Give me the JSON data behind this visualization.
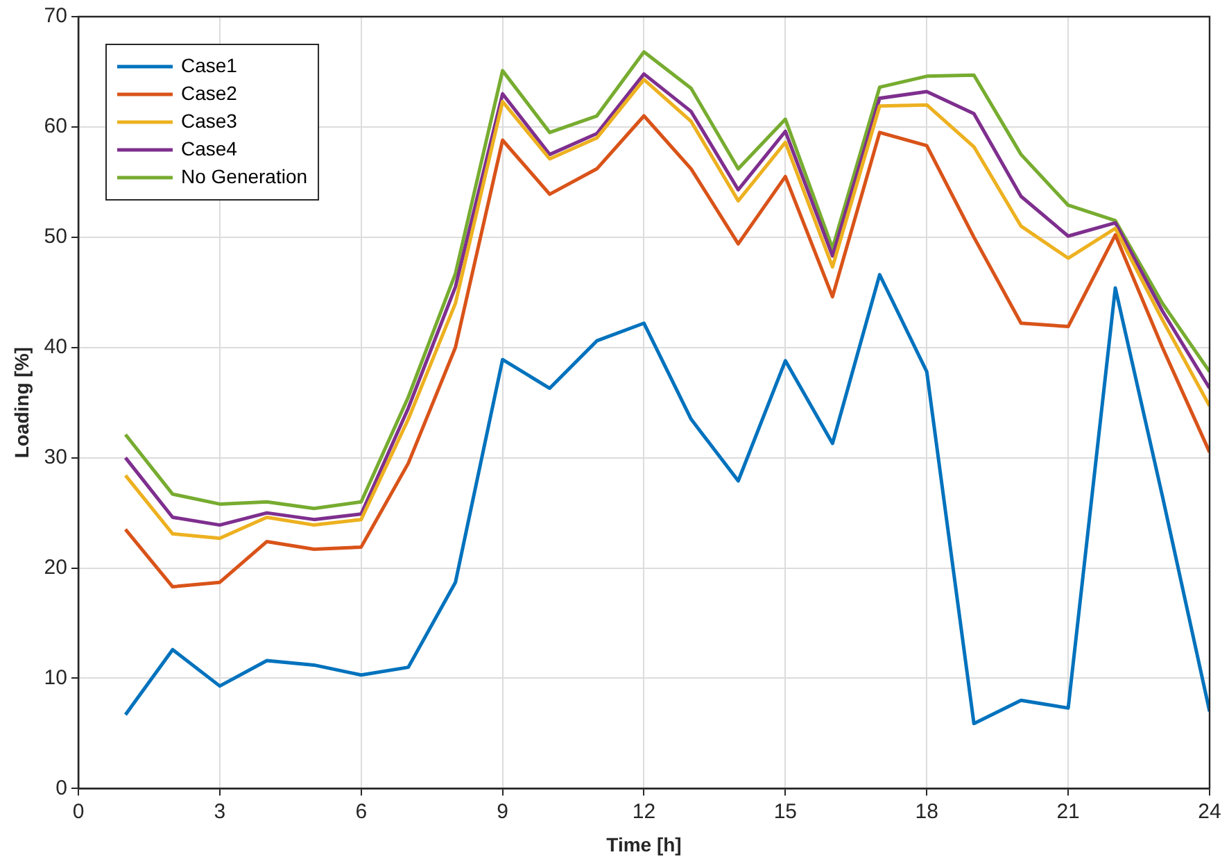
{
  "chart_data": {
    "type": "line",
    "xlabel": "Time [h]",
    "ylabel": "Loading [%]",
    "x": [
      1,
      2,
      3,
      4,
      5,
      6,
      7,
      8,
      9,
      10,
      11,
      12,
      13,
      14,
      15,
      16,
      17,
      18,
      19,
      20,
      21,
      22,
      23,
      24
    ],
    "xlim": [
      0,
      24
    ],
    "xticks": [
      0,
      3,
      6,
      9,
      12,
      15,
      18,
      21,
      24
    ],
    "ylim": [
      0,
      70
    ],
    "yticks": [
      0,
      10,
      20,
      30,
      40,
      50,
      60,
      70
    ],
    "grid": true,
    "legend": "top left",
    "marker": "none",
    "line_style": "solid",
    "series": [
      {
        "name": "Case1",
        "color": "#0072bd",
        "values": [
          6.7,
          12.6,
          9.3,
          11.6,
          11.2,
          10.3,
          11.0,
          18.7,
          38.9,
          36.3,
          40.6,
          42.2,
          33.5,
          27.9,
          38.8,
          31.3,
          46.6,
          37.8,
          5.9,
          8.0,
          7.3,
          45.4,
          26.5,
          7.0
        ]
      },
      {
        "name": "Case2",
        "color": "#d95319",
        "values": [
          23.5,
          18.3,
          18.7,
          22.4,
          21.7,
          21.9,
          29.5,
          40.0,
          58.8,
          53.9,
          56.2,
          61.0,
          56.2,
          49.4,
          55.5,
          44.6,
          59.5,
          58.3,
          50.0,
          42.2,
          41.9,
          50.2,
          40.0,
          30.5
        ]
      },
      {
        "name": "Case3",
        "color": "#edb120",
        "values": [
          28.4,
          23.1,
          22.7,
          24.6,
          23.9,
          24.4,
          33.5,
          44.0,
          62.3,
          57.1,
          59.0,
          64.3,
          60.5,
          53.3,
          58.6,
          47.3,
          61.9,
          62.0,
          58.2,
          51.0,
          48.1,
          50.8,
          42.5,
          34.7
        ]
      },
      {
        "name": "Case4",
        "color": "#7e2f8e",
        "values": [
          30.0,
          24.6,
          23.9,
          25.0,
          24.4,
          24.9,
          34.5,
          45.5,
          63.0,
          57.5,
          59.4,
          64.8,
          61.4,
          54.3,
          59.6,
          48.3,
          62.6,
          63.2,
          61.2,
          53.7,
          50.1,
          51.3,
          43.3,
          36.3
        ]
      },
      {
        "name": "No Generation",
        "color": "#77ac30",
        "values": [
          32.1,
          26.7,
          25.8,
          26.0,
          25.4,
          26.0,
          35.5,
          46.7,
          65.1,
          59.5,
          61.0,
          66.8,
          63.5,
          56.2,
          60.7,
          49.0,
          63.6,
          64.6,
          64.7,
          57.5,
          52.9,
          51.5,
          44.0,
          37.8
        ]
      }
    ]
  }
}
